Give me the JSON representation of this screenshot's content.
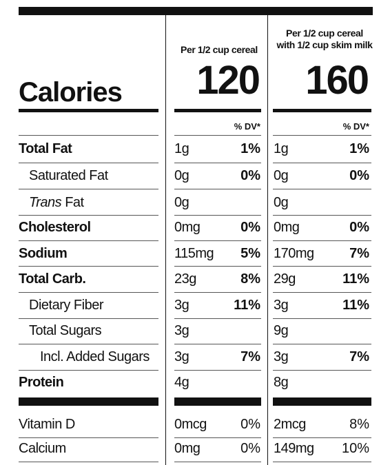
{
  "header": {
    "col1_label": "Per 1/2 cup cereal",
    "col2_label_line1": "Per 1/2 cup cereal",
    "col2_label_line2": "with 1/2 cup skim milk"
  },
  "calories": {
    "label": "Calories",
    "col1": "120",
    "col2": "160"
  },
  "dv_header": "% DV*",
  "rows": [
    {
      "name": "Total Fat",
      "c1_amt": "1g",
      "c1_dv": "1%",
      "c2_amt": "1g",
      "c2_dv": "1%"
    },
    {
      "name": "Saturated Fat",
      "c1_amt": "0g",
      "c1_dv": "0%",
      "c2_amt": "0g",
      "c2_dv": "0%"
    },
    {
      "name_italic": "Trans",
      "name_rest": " Fat",
      "c1_amt": "0g",
      "c1_dv": "",
      "c2_amt": "0g",
      "c2_dv": ""
    },
    {
      "name": "Cholesterol",
      "c1_amt": "0mg",
      "c1_dv": "0%",
      "c2_amt": "0mg",
      "c2_dv": "0%"
    },
    {
      "name": "Sodium",
      "c1_amt": "115mg",
      "c1_dv": "5%",
      "c2_amt": "170mg",
      "c2_dv": "7%"
    },
    {
      "name": "Total Carb.",
      "c1_amt": "23g",
      "c1_dv": "8%",
      "c2_amt": "29g",
      "c2_dv": "11%"
    },
    {
      "name": "Dietary Fiber",
      "c1_amt": "3g",
      "c1_dv": "11%",
      "c2_amt": "3g",
      "c2_dv": "11%"
    },
    {
      "name": "Total Sugars",
      "c1_amt": "3g",
      "c1_dv": "",
      "c2_amt": "9g",
      "c2_dv": ""
    },
    {
      "name": "Incl. Added Sugars",
      "c1_amt": "3g",
      "c1_dv": "7%",
      "c2_amt": "3g",
      "c2_dv": "7%"
    },
    {
      "name": "Protein",
      "c1_amt": "4g",
      "c1_dv": "",
      "c2_amt": "8g",
      "c2_dv": ""
    }
  ],
  "vitamins": [
    {
      "name": "Vitamin D",
      "c1_amt": "0mcg",
      "c1_dv": "0%",
      "c2_amt": "2mcg",
      "c2_dv": "8%"
    },
    {
      "name": "Calcium",
      "c1_amt": "0mg",
      "c1_dv": "0%",
      "c2_amt": "149mg",
      "c2_dv": "10%"
    }
  ]
}
